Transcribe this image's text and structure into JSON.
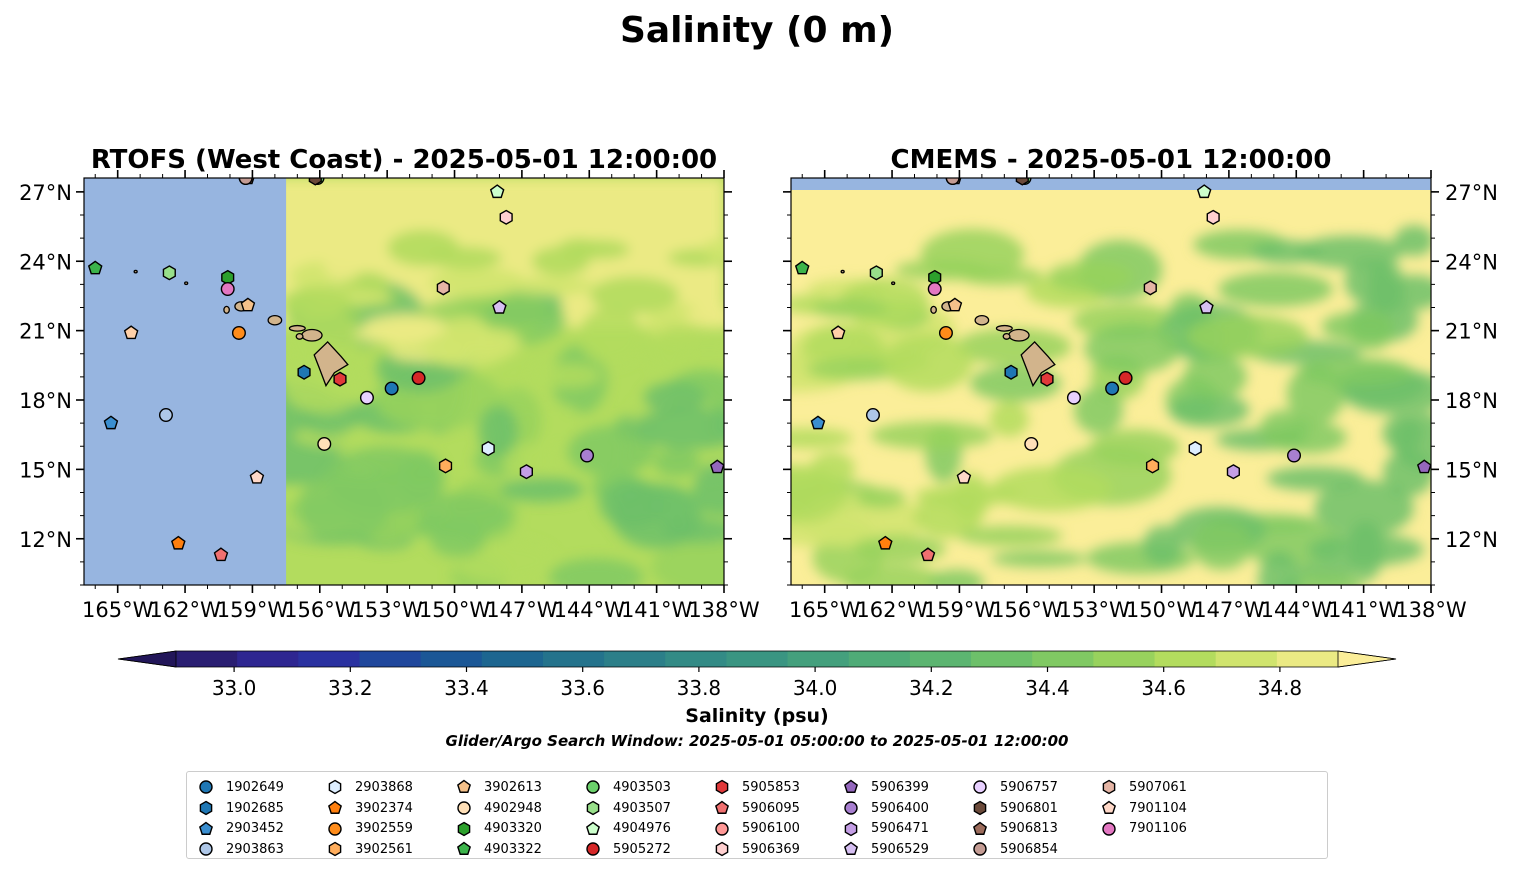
{
  "figure": {
    "title": "Salinity (0 m)",
    "search_window": "Glider/Argo Search Window: 2025-05-01 05:00:00 to 2025-05-01 12:00:00"
  },
  "chart_data": [
    {
      "type": "map",
      "title": "RTOFS (West Coast) - 2025-05-01 12:00:00",
      "xlim": [
        -166.5,
        -138
      ],
      "ylim": [
        10,
        27.6
      ],
      "xticks": [
        "165°W",
        "162°W",
        "159°W",
        "156°W",
        "153°W",
        "150°W",
        "147°W",
        "144°W",
        "141°W",
        "138°W"
      ],
      "yticks": [
        "27°N",
        "24°N",
        "21°N",
        "18°N",
        "15°N",
        "12°N"
      ],
      "y_axis_side": "left",
      "no_data_region": {
        "lon_max": -157.5,
        "color": "#97b5e0"
      }
    },
    {
      "type": "map",
      "title": "CMEMS - 2025-05-01 12:00:00",
      "xlim": [
        -166.5,
        -138
      ],
      "ylim": [
        10,
        27.6
      ],
      "xticks": [
        "165°W",
        "162°W",
        "159°W",
        "156°W",
        "153°W",
        "150°W",
        "147°W",
        "144°W",
        "141°W",
        "138°W"
      ],
      "yticks": [
        "27°N",
        "24°N",
        "21°N",
        "18°N",
        "15°N",
        "12°N"
      ],
      "y_axis_side": "right",
      "no_data_region": {
        "lat_min": 27.05,
        "color": "#97b5e0"
      }
    }
  ],
  "colorbar": {
    "label": "Salinity (psu)",
    "min": 32.9,
    "max": 34.9,
    "step": 0.1,
    "extend": "both",
    "ticks": [
      "33.0",
      "33.2",
      "33.4",
      "33.6",
      "33.8",
      "34.0",
      "34.2",
      "34.4",
      "34.6",
      "34.8"
    ],
    "colors": [
      "#2a1e72",
      "#2e2691",
      "#2a31a0",
      "#20479c",
      "#1b5796",
      "#1d6690",
      "#24738c",
      "#2c7f89",
      "#338b86",
      "#3a9582",
      "#44a07d",
      "#4fab77",
      "#5cb571",
      "#6dc06a",
      "#80c963",
      "#98d25d",
      "#b3dc5e",
      "#d0e46e",
      "#ebea84"
    ],
    "under_color": "#221659",
    "over_color": "#fbee99"
  },
  "floats": [
    {
      "id": "1902649",
      "marker": "circle",
      "color": "#1f77b4",
      "lat": 18.5,
      "lon_r": -152.8,
      "lon_c": -152.2
    },
    {
      "id": "1902685",
      "marker": "hexagon",
      "color": "#1f77b4",
      "lat": 19.2,
      "lon_r": -156.7,
      "lon_c": -156.7
    },
    {
      "id": "2903452",
      "marker": "pentagon",
      "color": "#3a8ed0",
      "lat": 17.0,
      "lon_r": -165.3,
      "lon_c": -165.3
    },
    {
      "id": "2903863",
      "marker": "circle",
      "color": "#aec7e8",
      "lat": 17.35,
      "lon_r": -162.85,
      "lon_c": -162.85
    },
    {
      "id": "2903868",
      "marker": "hexagon",
      "color": "#ddeeff",
      "lat": 15.9,
      "lon_r": -148.5,
      "lon_c": -148.5
    },
    {
      "id": "3902374",
      "marker": "pentagon",
      "color": "#ff7f0e",
      "lat": 11.8,
      "lon_r": -162.3,
      "lon_c": -162.3
    },
    {
      "id": "3902559",
      "marker": "circle",
      "color": "#ff8c1a",
      "lat": 20.9,
      "lon_r": -159.6,
      "lon_c": -159.6
    },
    {
      "id": "3902561",
      "marker": "hexagon",
      "color": "#ffad5c",
      "lat": 15.15,
      "lon_r": -150.4,
      "lon_c": -150.4
    },
    {
      "id": "3902613",
      "marker": "pentagon",
      "color": "#f5c18a",
      "lat": 22.1,
      "lon_r": -159.2,
      "lon_c": -159.2
    },
    {
      "id": "4902948",
      "marker": "circle",
      "color": "#ffe0b8",
      "lat": 16.1,
      "lon_r": -155.8,
      "lon_c": -155.8
    },
    {
      "id": "4903320",
      "marker": "hexagon",
      "color": "#2ca02c",
      "lat": 23.3,
      "lon_r": -160.1,
      "lon_c": -160.1
    },
    {
      "id": "4903322",
      "marker": "pentagon",
      "color": "#3cb44b",
      "lat": 23.7,
      "lon_r": -166.0,
      "lon_c": -166.0
    },
    {
      "id": "4903503",
      "marker": "circle",
      "color": "#6bd06b",
      "lat": 27.6,
      "lon_r": -156.1,
      "lon_c": -156.1
    },
    {
      "id": "4903507",
      "marker": "hexagon",
      "color": "#98df8a",
      "lat": 23.5,
      "lon_r": -162.7,
      "lon_c": -162.7
    },
    {
      "id": "4904976",
      "marker": "pentagon",
      "color": "#ccffcc",
      "lat": 27.0,
      "lon_r": -148.1,
      "lon_c": -148.1
    },
    {
      "id": "5905272",
      "marker": "circle",
      "color": "#d62728",
      "lat": 18.95,
      "lon_r": -151.6,
      "lon_c": -151.6
    },
    {
      "id": "5905853",
      "marker": "hexagon",
      "color": "#e0393a",
      "lat": 18.9,
      "lon_r": -155.1,
      "lon_c": -155.1
    },
    {
      "id": "5906095",
      "marker": "pentagon",
      "color": "#f07070",
      "lat": 11.3,
      "lon_r": -160.4,
      "lon_c": -160.4
    },
    {
      "id": "5906100",
      "marker": "circle",
      "color": "#ff9896",
      "lat": 27.6,
      "lon_r": -159.3,
      "lon_c": -159.3
    },
    {
      "id": "5906369",
      "marker": "hexagon",
      "color": "#ffd0d0",
      "lat": 25.9,
      "lon_r": -147.7,
      "lon_c": -147.7
    },
    {
      "id": "5906399",
      "marker": "pentagon",
      "color": "#9467bd",
      "lat": 15.1,
      "lon_r": -138.3,
      "lon_c": -138.3
    },
    {
      "id": "5906400",
      "marker": "circle",
      "color": "#a87fd0",
      "lat": 15.6,
      "lon_r": -144.1,
      "lon_c": -144.1
    },
    {
      "id": "5906471",
      "marker": "hexagon",
      "color": "#c49ee5",
      "lat": 14.9,
      "lon_r": -146.8,
      "lon_c": -146.8
    },
    {
      "id": "5906529",
      "marker": "pentagon",
      "color": "#d6bff2",
      "lat": 22.0,
      "lon_r": -148.0,
      "lon_c": -148.0
    },
    {
      "id": "5906757",
      "marker": "circle",
      "color": "#e8d0ff",
      "lat": 18.1,
      "lon_r": -153.9,
      "lon_c": -153.9
    },
    {
      "id": "5906801",
      "marker": "hexagon",
      "color": "#6b4a3a",
      "lat": 27.6,
      "lon_r": -156.2,
      "lon_c": -156.2
    },
    {
      "id": "5906813",
      "marker": "pentagon",
      "color": "#9c6c5c",
      "lat": 27.6,
      "lon_r": -159.2,
      "lon_c": -159.2
    },
    {
      "id": "5906854",
      "marker": "circle",
      "color": "#c49c94",
      "lat": 27.6,
      "lon_r": -159.3,
      "lon_c": -159.3
    },
    {
      "id": "5907061",
      "marker": "hexagon",
      "color": "#e5b5a5",
      "lat": 22.85,
      "lon_r": -150.5,
      "lon_c": -150.5
    },
    {
      "id": "7901104",
      "marker": "pentagon",
      "color": "#ffd8c8",
      "lat": 14.65,
      "lon_r": -158.8,
      "lon_c": -158.8
    },
    {
      "id": "7901106",
      "marker": "circle",
      "color": "#e377c2",
      "lat": 22.8,
      "lon_r": -160.1,
      "lon_c": -160.1
    },
    {
      "id": "2903452b",
      "marker": "pentagon",
      "color": "#ffd0a8",
      "lat": 20.9,
      "lon_r": -164.4,
      "lon_c": -164.4
    }
  ],
  "legend_ids": [
    "1902649",
    "1902685",
    "2903452",
    "2903863",
    "2903868",
    "3902374",
    "3902559",
    "3902561",
    "3902613",
    "4902948",
    "4903320",
    "4903322",
    "4903503",
    "4903507",
    "4904976",
    "5905272",
    "5905853",
    "5906095",
    "5906100",
    "5906369",
    "5906399",
    "5906400",
    "5906471",
    "5906529",
    "5906757",
    "5906801",
    "5906813",
    "5906854",
    "5907061",
    "7901104",
    "7901106"
  ]
}
